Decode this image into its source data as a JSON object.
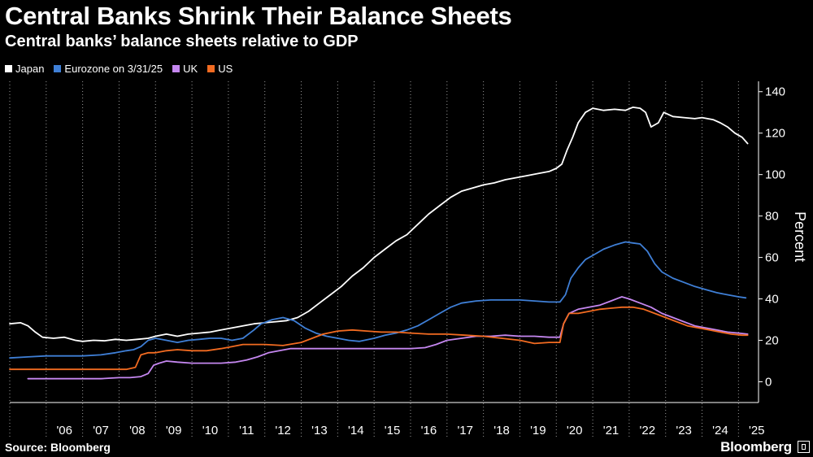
{
  "header": {
    "title": "Central Banks Shrink Their Balance Sheets",
    "subtitle": "Central banks’ balance sheets relative to GDP"
  },
  "footer": {
    "source": "Source: Bloomberg",
    "brand": "Bloomberg"
  },
  "chart_data": {
    "type": "line",
    "title": "Central Banks Shrink Their Balance Sheets",
    "subtitle": "Central banks’ balance sheets relative to GDP",
    "xlabel": "",
    "ylabel": "Percent",
    "xlim": [
      2005.0,
      2025.55
    ],
    "ylim": [
      -10,
      145
    ],
    "yticks": [
      0,
      20,
      40,
      60,
      80,
      100,
      120,
      140
    ],
    "xtick_labels": [
      "'06",
      "'07",
      "'08",
      "'09",
      "'10",
      "'11",
      "'12",
      "'13",
      "'14",
      "'15",
      "'16",
      "'17",
      "'18",
      "'19",
      "'20",
      "'21",
      "'22",
      "'23",
      "'24",
      "'25"
    ],
    "grid": "vertical dotted",
    "legend_position": "top-left",
    "series": [
      {
        "name": "Japan",
        "color": "#ffffff",
        "points": [
          [
            2005.0,
            28
          ],
          [
            2005.3,
            28.5
          ],
          [
            2005.5,
            27
          ],
          [
            2005.7,
            24
          ],
          [
            2005.9,
            21.5
          ],
          [
            2006.2,
            21
          ],
          [
            2006.5,
            21.5
          ],
          [
            2006.8,
            20
          ],
          [
            2007.0,
            19.5
          ],
          [
            2007.3,
            20
          ],
          [
            2007.6,
            19.8
          ],
          [
            2007.9,
            20.5
          ],
          [
            2008.2,
            20
          ],
          [
            2008.5,
            20.5
          ],
          [
            2008.8,
            21
          ],
          [
            2009.0,
            22
          ],
          [
            2009.3,
            23
          ],
          [
            2009.6,
            22
          ],
          [
            2009.9,
            23
          ],
          [
            2010.2,
            23.5
          ],
          [
            2010.5,
            24
          ],
          [
            2010.8,
            25
          ],
          [
            2011.1,
            26
          ],
          [
            2011.4,
            27
          ],
          [
            2011.7,
            28
          ],
          [
            2012.0,
            28.5
          ],
          [
            2012.3,
            29
          ],
          [
            2012.6,
            29.5
          ],
          [
            2012.9,
            31
          ],
          [
            2013.2,
            34
          ],
          [
            2013.5,
            38
          ],
          [
            2013.8,
            42
          ],
          [
            2014.1,
            46
          ],
          [
            2014.4,
            51
          ],
          [
            2014.7,
            55
          ],
          [
            2015.0,
            60
          ],
          [
            2015.3,
            64
          ],
          [
            2015.6,
            68
          ],
          [
            2015.9,
            71
          ],
          [
            2016.2,
            76
          ],
          [
            2016.5,
            81
          ],
          [
            2016.8,
            85
          ],
          [
            2017.1,
            89
          ],
          [
            2017.4,
            92
          ],
          [
            2017.7,
            93.5
          ],
          [
            2018.0,
            95
          ],
          [
            2018.3,
            96
          ],
          [
            2018.6,
            97.5
          ],
          [
            2018.9,
            98.5
          ],
          [
            2019.2,
            99.5
          ],
          [
            2019.5,
            100.5
          ],
          [
            2019.8,
            101.5
          ],
          [
            2020.0,
            103
          ],
          [
            2020.15,
            105
          ],
          [
            2020.3,
            112
          ],
          [
            2020.45,
            118
          ],
          [
            2020.6,
            125
          ],
          [
            2020.8,
            130
          ],
          [
            2021.0,
            132
          ],
          [
            2021.3,
            131
          ],
          [
            2021.6,
            131.5
          ],
          [
            2021.9,
            131
          ],
          [
            2022.1,
            132.5
          ],
          [
            2022.3,
            132
          ],
          [
            2022.45,
            130
          ],
          [
            2022.6,
            123
          ],
          [
            2022.8,
            125
          ],
          [
            2022.95,
            130
          ],
          [
            2023.2,
            128
          ],
          [
            2023.5,
            127.5
          ],
          [
            2023.8,
            127
          ],
          [
            2024.0,
            127.5
          ],
          [
            2024.3,
            126.5
          ],
          [
            2024.5,
            125
          ],
          [
            2024.7,
            123
          ],
          [
            2024.9,
            120
          ],
          [
            2025.1,
            118
          ],
          [
            2025.25,
            115
          ]
        ]
      },
      {
        "name": "Eurozone on 3/31/25",
        "color": "#3f7fd6",
        "points": [
          [
            2005.0,
            11.5
          ],
          [
            2005.5,
            12
          ],
          [
            2006.0,
            12.5
          ],
          [
            2006.5,
            12.5
          ],
          [
            2007.0,
            12.5
          ],
          [
            2007.5,
            13
          ],
          [
            2007.9,
            14
          ],
          [
            2008.2,
            15
          ],
          [
            2008.4,
            15.5
          ],
          [
            2008.6,
            17
          ],
          [
            2008.8,
            20
          ],
          [
            2009.0,
            21
          ],
          [
            2009.3,
            20
          ],
          [
            2009.6,
            19
          ],
          [
            2009.9,
            20
          ],
          [
            2010.2,
            20.5
          ],
          [
            2010.5,
            21
          ],
          [
            2010.8,
            21
          ],
          [
            2011.1,
            20
          ],
          [
            2011.4,
            21
          ],
          [
            2011.7,
            25
          ],
          [
            2011.9,
            28
          ],
          [
            2012.2,
            30
          ],
          [
            2012.5,
            31
          ],
          [
            2012.8,
            29.5
          ],
          [
            2013.1,
            26
          ],
          [
            2013.4,
            23.5
          ],
          [
            2013.7,
            22
          ],
          [
            2014.0,
            21
          ],
          [
            2014.3,
            20
          ],
          [
            2014.6,
            19.5
          ],
          [
            2015.0,
            21
          ],
          [
            2015.3,
            22.5
          ],
          [
            2015.6,
            23.5
          ],
          [
            2015.9,
            25
          ],
          [
            2016.2,
            27
          ],
          [
            2016.5,
            30
          ],
          [
            2016.8,
            33
          ],
          [
            2017.1,
            36
          ],
          [
            2017.4,
            38
          ],
          [
            2017.8,
            39
          ],
          [
            2018.2,
            39.5
          ],
          [
            2018.6,
            39.5
          ],
          [
            2019.0,
            39.5
          ],
          [
            2019.4,
            39
          ],
          [
            2019.8,
            38.5
          ],
          [
            2020.1,
            38.5
          ],
          [
            2020.25,
            42
          ],
          [
            2020.4,
            50
          ],
          [
            2020.6,
            55
          ],
          [
            2020.8,
            59
          ],
          [
            2021.0,
            61
          ],
          [
            2021.3,
            64
          ],
          [
            2021.6,
            66
          ],
          [
            2021.9,
            67.5
          ],
          [
            2022.1,
            67
          ],
          [
            2022.3,
            66.5
          ],
          [
            2022.5,
            63
          ],
          [
            2022.7,
            57
          ],
          [
            2022.9,
            53
          ],
          [
            2023.2,
            50
          ],
          [
            2023.5,
            48
          ],
          [
            2023.8,
            46
          ],
          [
            2024.1,
            44.5
          ],
          [
            2024.4,
            43
          ],
          [
            2024.7,
            42
          ],
          [
            2025.0,
            41
          ],
          [
            2025.2,
            40.5
          ]
        ]
      },
      {
        "name": "UK",
        "color": "#c587f0",
        "points": [
          [
            2005.5,
            1.5
          ],
          [
            2006.0,
            1.5
          ],
          [
            2006.5,
            1.5
          ],
          [
            2007.0,
            1.5
          ],
          [
            2007.5,
            1.5
          ],
          [
            2008.0,
            2
          ],
          [
            2008.3,
            2
          ],
          [
            2008.6,
            2.5
          ],
          [
            2008.8,
            4
          ],
          [
            2008.95,
            8
          ],
          [
            2009.1,
            9
          ],
          [
            2009.3,
            10
          ],
          [
            2009.6,
            9.5
          ],
          [
            2010.0,
            9
          ],
          [
            2010.4,
            9
          ],
          [
            2010.8,
            9
          ],
          [
            2011.2,
            9.5
          ],
          [
            2011.5,
            10.5
          ],
          [
            2011.8,
            12
          ],
          [
            2012.1,
            14
          ],
          [
            2012.4,
            15
          ],
          [
            2012.7,
            16
          ],
          [
            2013.0,
            16
          ],
          [
            2013.5,
            16
          ],
          [
            2014.0,
            16
          ],
          [
            2014.5,
            16
          ],
          [
            2015.0,
            16
          ],
          [
            2015.5,
            16
          ],
          [
            2016.0,
            16
          ],
          [
            2016.4,
            16.5
          ],
          [
            2016.7,
            18
          ],
          [
            2017.0,
            20
          ],
          [
            2017.4,
            21
          ],
          [
            2017.8,
            22
          ],
          [
            2018.2,
            22
          ],
          [
            2018.6,
            22.5
          ],
          [
            2019.0,
            22
          ],
          [
            2019.4,
            22
          ],
          [
            2019.8,
            21.5
          ],
          [
            2020.1,
            21.5
          ],
          [
            2020.2,
            28
          ],
          [
            2020.35,
            33
          ],
          [
            2020.6,
            35
          ],
          [
            2020.9,
            36
          ],
          [
            2021.2,
            37
          ],
          [
            2021.5,
            39
          ],
          [
            2021.8,
            41
          ],
          [
            2022.0,
            40
          ],
          [
            2022.3,
            38
          ],
          [
            2022.6,
            36
          ],
          [
            2022.9,
            33
          ],
          [
            2023.2,
            31
          ],
          [
            2023.5,
            29
          ],
          [
            2023.8,
            27
          ],
          [
            2024.1,
            26
          ],
          [
            2024.4,
            25
          ],
          [
            2024.7,
            24
          ],
          [
            2025.0,
            23.5
          ],
          [
            2025.25,
            23
          ]
        ]
      },
      {
        "name": "US",
        "color": "#f26b21",
        "points": [
          [
            2005.0,
            6
          ],
          [
            2005.5,
            6
          ],
          [
            2006.0,
            6
          ],
          [
            2006.5,
            6
          ],
          [
            2007.0,
            6
          ],
          [
            2007.5,
            6
          ],
          [
            2007.9,
            6
          ],
          [
            2008.2,
            6
          ],
          [
            2008.45,
            7
          ],
          [
            2008.6,
            13
          ],
          [
            2008.8,
            14
          ],
          [
            2009.0,
            14
          ],
          [
            2009.3,
            15
          ],
          [
            2009.6,
            15.5
          ],
          [
            2010.0,
            15
          ],
          [
            2010.4,
            15
          ],
          [
            2010.8,
            16
          ],
          [
            2011.1,
            17
          ],
          [
            2011.4,
            18
          ],
          [
            2011.7,
            18
          ],
          [
            2012.0,
            18
          ],
          [
            2012.5,
            17.5
          ],
          [
            2013.0,
            19
          ],
          [
            2013.3,
            21
          ],
          [
            2013.6,
            23
          ],
          [
            2014.0,
            24.5
          ],
          [
            2014.4,
            25
          ],
          [
            2014.8,
            24.5
          ],
          [
            2015.2,
            24
          ],
          [
            2015.6,
            24
          ],
          [
            2016.0,
            23.5
          ],
          [
            2016.5,
            23
          ],
          [
            2017.0,
            23
          ],
          [
            2017.5,
            22.5
          ],
          [
            2018.0,
            22
          ],
          [
            2018.5,
            21
          ],
          [
            2019.0,
            20
          ],
          [
            2019.4,
            18.5
          ],
          [
            2019.8,
            19
          ],
          [
            2020.1,
            19
          ],
          [
            2020.2,
            28
          ],
          [
            2020.35,
            33
          ],
          [
            2020.6,
            33
          ],
          [
            2020.9,
            34
          ],
          [
            2021.2,
            35
          ],
          [
            2021.5,
            35.5
          ],
          [
            2021.8,
            36
          ],
          [
            2022.1,
            36
          ],
          [
            2022.4,
            35
          ],
          [
            2022.7,
            33
          ],
          [
            2023.0,
            31
          ],
          [
            2023.3,
            29
          ],
          [
            2023.6,
            27
          ],
          [
            2023.9,
            26
          ],
          [
            2024.2,
            25
          ],
          [
            2024.5,
            24
          ],
          [
            2024.8,
            23
          ],
          [
            2025.1,
            22.5
          ],
          [
            2025.25,
            22.5
          ]
        ]
      }
    ]
  }
}
